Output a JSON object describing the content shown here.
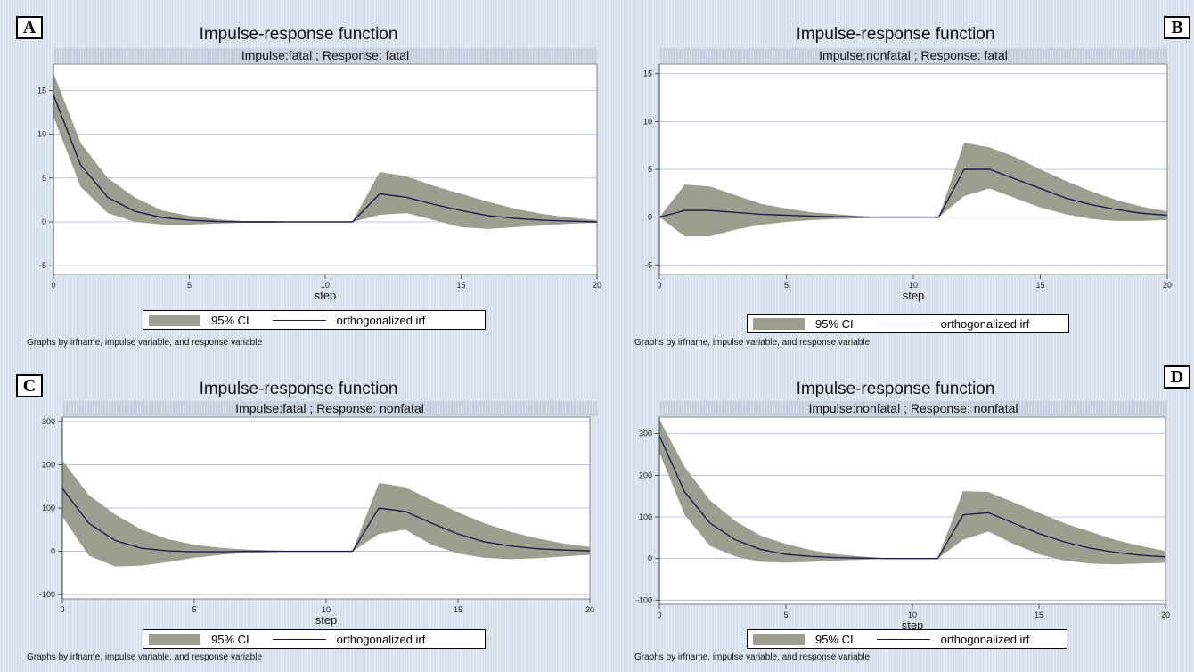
{
  "panels": [
    {
      "letter": "A",
      "title": "Impulse-response function",
      "subtitle": "Impulse:fatal ; Response: fatal",
      "xlabel": "step",
      "legend_ci": "95% CI",
      "legend_line": "orthogonalized irf",
      "note": "Graphs by irfname, impulse variable, and response variable"
    },
    {
      "letter": "B",
      "title": "Impulse-response function",
      "subtitle": "Impulse:nonfatal ; Response: fatal",
      "xlabel": "step",
      "legend_ci": "95% CI",
      "legend_line": "orthogonalized irf",
      "note": "Graphs by irfname, impulse variable, and response variable"
    },
    {
      "letter": "C",
      "title": "Impulse-response function",
      "subtitle": "Impulse:fatal ; Response: nonfatal",
      "xlabel": "step",
      "legend_ci": "95% CI",
      "legend_line": "orthogonalized irf",
      "note": "Graphs by irfname, impulse variable, and response variable"
    },
    {
      "letter": "D",
      "title": "Impulse-response function",
      "subtitle": "Impulse:nonfatal ; Response: nonfatal",
      "xlabel": "step",
      "legend_ci": "95% CI",
      "legend_line": "orthogonalized irf",
      "note": "Graphs by irfname, impulse variable, and response variable"
    }
  ],
  "colors": {
    "band": "#9c9f90",
    "line": "#1a1f4a",
    "grid": "#a9b8d0",
    "plotbg": "#ffffff"
  },
  "chart_data": [
    {
      "type": "area",
      "title": "Impulse-response function",
      "subtitle": "Impulse:fatal ; Response: fatal",
      "xlabel": "step",
      "xlim": [
        0,
        20
      ],
      "ylim": [
        -6,
        18
      ],
      "xticks": [
        0,
        5,
        10,
        15,
        20
      ],
      "yticks": [
        -5,
        0,
        5,
        10,
        15
      ],
      "x": [
        0,
        1,
        2,
        3,
        4,
        5,
        6,
        7,
        8,
        9,
        10,
        11,
        12,
        13,
        14,
        15,
        16,
        17,
        18,
        19,
        20
      ],
      "series": [
        {
          "name": "orthogonalized irf",
          "values": [
            14.5,
            6.5,
            2.8,
            1.2,
            0.5,
            0.2,
            0.05,
            0,
            0,
            0,
            0,
            0,
            3.2,
            2.8,
            2,
            1.3,
            0.7,
            0.4,
            0.2,
            0.1,
            0
          ]
        },
        {
          "name": "95% CI",
          "lower": [
            12,
            4,
            1,
            0,
            -0.3,
            -0.3,
            -0.2,
            -0.1,
            -0.1,
            0,
            0,
            0,
            0.8,
            1,
            0.2,
            -0.6,
            -0.8,
            -0.6,
            -0.4,
            -0.2,
            -0.1
          ],
          "upper": [
            17,
            9,
            5,
            2.8,
            1.3,
            0.7,
            0.3,
            0.1,
            0.1,
            0,
            0,
            0,
            5.7,
            5.2,
            4.1,
            3.2,
            2.3,
            1.5,
            0.9,
            0.5,
            0.2
          ]
        }
      ],
      "grid": true,
      "legend": "bottom"
    },
    {
      "type": "area",
      "title": "Impulse-response function",
      "subtitle": "Impulse:nonfatal ; Response: fatal",
      "xlabel": "step",
      "xlim": [
        0,
        20
      ],
      "ylim": [
        -6,
        16
      ],
      "xticks": [
        0,
        5,
        10,
        15,
        20
      ],
      "yticks": [
        -5,
        0,
        5,
        10,
        15
      ],
      "x": [
        0,
        1,
        2,
        3,
        4,
        5,
        6,
        7,
        8,
        9,
        10,
        11,
        12,
        13,
        14,
        15,
        16,
        17,
        18,
        19,
        20
      ],
      "series": [
        {
          "name": "orthogonalized irf",
          "values": [
            0,
            0.7,
            0.7,
            0.5,
            0.3,
            0.2,
            0.1,
            0.05,
            0,
            0,
            0,
            0,
            5,
            5,
            4,
            3,
            2,
            1.3,
            0.8,
            0.4,
            0.2
          ]
        },
        {
          "name": "95% CI",
          "lower": [
            0,
            -2,
            -2,
            -1.3,
            -0.8,
            -0.5,
            -0.3,
            -0.2,
            -0.1,
            0,
            0,
            0,
            2.2,
            3,
            2,
            1,
            0.3,
            -0.2,
            -0.4,
            -0.4,
            -0.3
          ],
          " upper": [
            0,
            3.4,
            3.2,
            2.3,
            1.4,
            0.9,
            0.5,
            0.3,
            0.1,
            0,
            0,
            0,
            7.8,
            7.3,
            6.3,
            5,
            3.8,
            2.7,
            1.8,
            1.1,
            0.6
          ],
          "upper": [
            0,
            3.4,
            3.2,
            2.3,
            1.4,
            0.9,
            0.5,
            0.3,
            0.1,
            0,
            0,
            0,
            7.8,
            7.3,
            6.3,
            5,
            3.8,
            2.7,
            1.8,
            1.1,
            0.6
          ]
        }
      ],
      "grid": true,
      "legend": "bottom"
    },
    {
      "type": "area",
      "title": "Impulse-response function",
      "subtitle": "Impulse:fatal ; Response: nonfatal",
      "xlabel": "step",
      "xlim": [
        0,
        20
      ],
      "ylim": [
        -110,
        310
      ],
      "xticks": [
        0,
        5,
        10,
        15,
        20
      ],
      "yticks": [
        -100,
        0,
        100,
        200,
        300
      ],
      "x": [
        0,
        1,
        2,
        3,
        4,
        5,
        6,
        7,
        8,
        9,
        10,
        11,
        12,
        13,
        14,
        15,
        16,
        17,
        18,
        19,
        20
      ],
      "series": [
        {
          "name": "orthogonalized irf",
          "values": [
            145,
            65,
            25,
            7,
            1,
            -1,
            -1,
            0,
            0,
            0,
            0,
            0,
            100,
            92,
            65,
            40,
            22,
            12,
            6,
            3,
            1
          ]
        },
        {
          "name": "95% CI",
          "lower": [
            80,
            -10,
            -35,
            -33,
            -25,
            -15,
            -8,
            -4,
            -2,
            0,
            0,
            0,
            40,
            50,
            15,
            -5,
            -15,
            -18,
            -16,
            -12,
            -8
          ],
          "upper": [
            210,
            130,
            85,
            50,
            28,
            15,
            8,
            4,
            2,
            0,
            0,
            0,
            158,
            148,
            118,
            90,
            65,
            45,
            30,
            18,
            10
          ]
        }
      ],
      "grid": true,
      "legend": "bottom"
    },
    {
      "type": "area",
      "title": "Impulse-response function",
      "subtitle": "Impulse:nonfatal ; Response: nonfatal",
      "xlabel": "step",
      "xlim": [
        0,
        20
      ],
      "ylim": [
        -110,
        340
      ],
      "xticks": [
        0,
        5,
        10,
        15,
        20
      ],
      "yticks": [
        -100,
        0,
        100,
        200,
        300
      ],
      "x": [
        0,
        1,
        2,
        3,
        4,
        5,
        6,
        7,
        8,
        9,
        10,
        11,
        12,
        13,
        14,
        15,
        16,
        17,
        18,
        19,
        20
      ],
      "series": [
        {
          "name": "orthogonalized irf",
          "values": [
            295,
            160,
            85,
            45,
            22,
            10,
            5,
            2,
            1,
            0,
            0,
            0,
            105,
            110,
            85,
            60,
            40,
            25,
            15,
            8,
            4
          ]
        },
        {
          "name": "95% CI",
          "lower": [
            255,
            105,
            30,
            5,
            -8,
            -10,
            -8,
            -5,
            -3,
            0,
            0,
            0,
            45,
            65,
            35,
            10,
            -5,
            -12,
            -14,
            -12,
            -10
          ],
          "upper": [
            335,
            220,
            140,
            90,
            55,
            35,
            20,
            10,
            5,
            0,
            0,
            0,
            162,
            160,
            135,
            110,
            85,
            65,
            45,
            30,
            18
          ]
        }
      ],
      "grid": true,
      "legend": "bottom"
    }
  ]
}
